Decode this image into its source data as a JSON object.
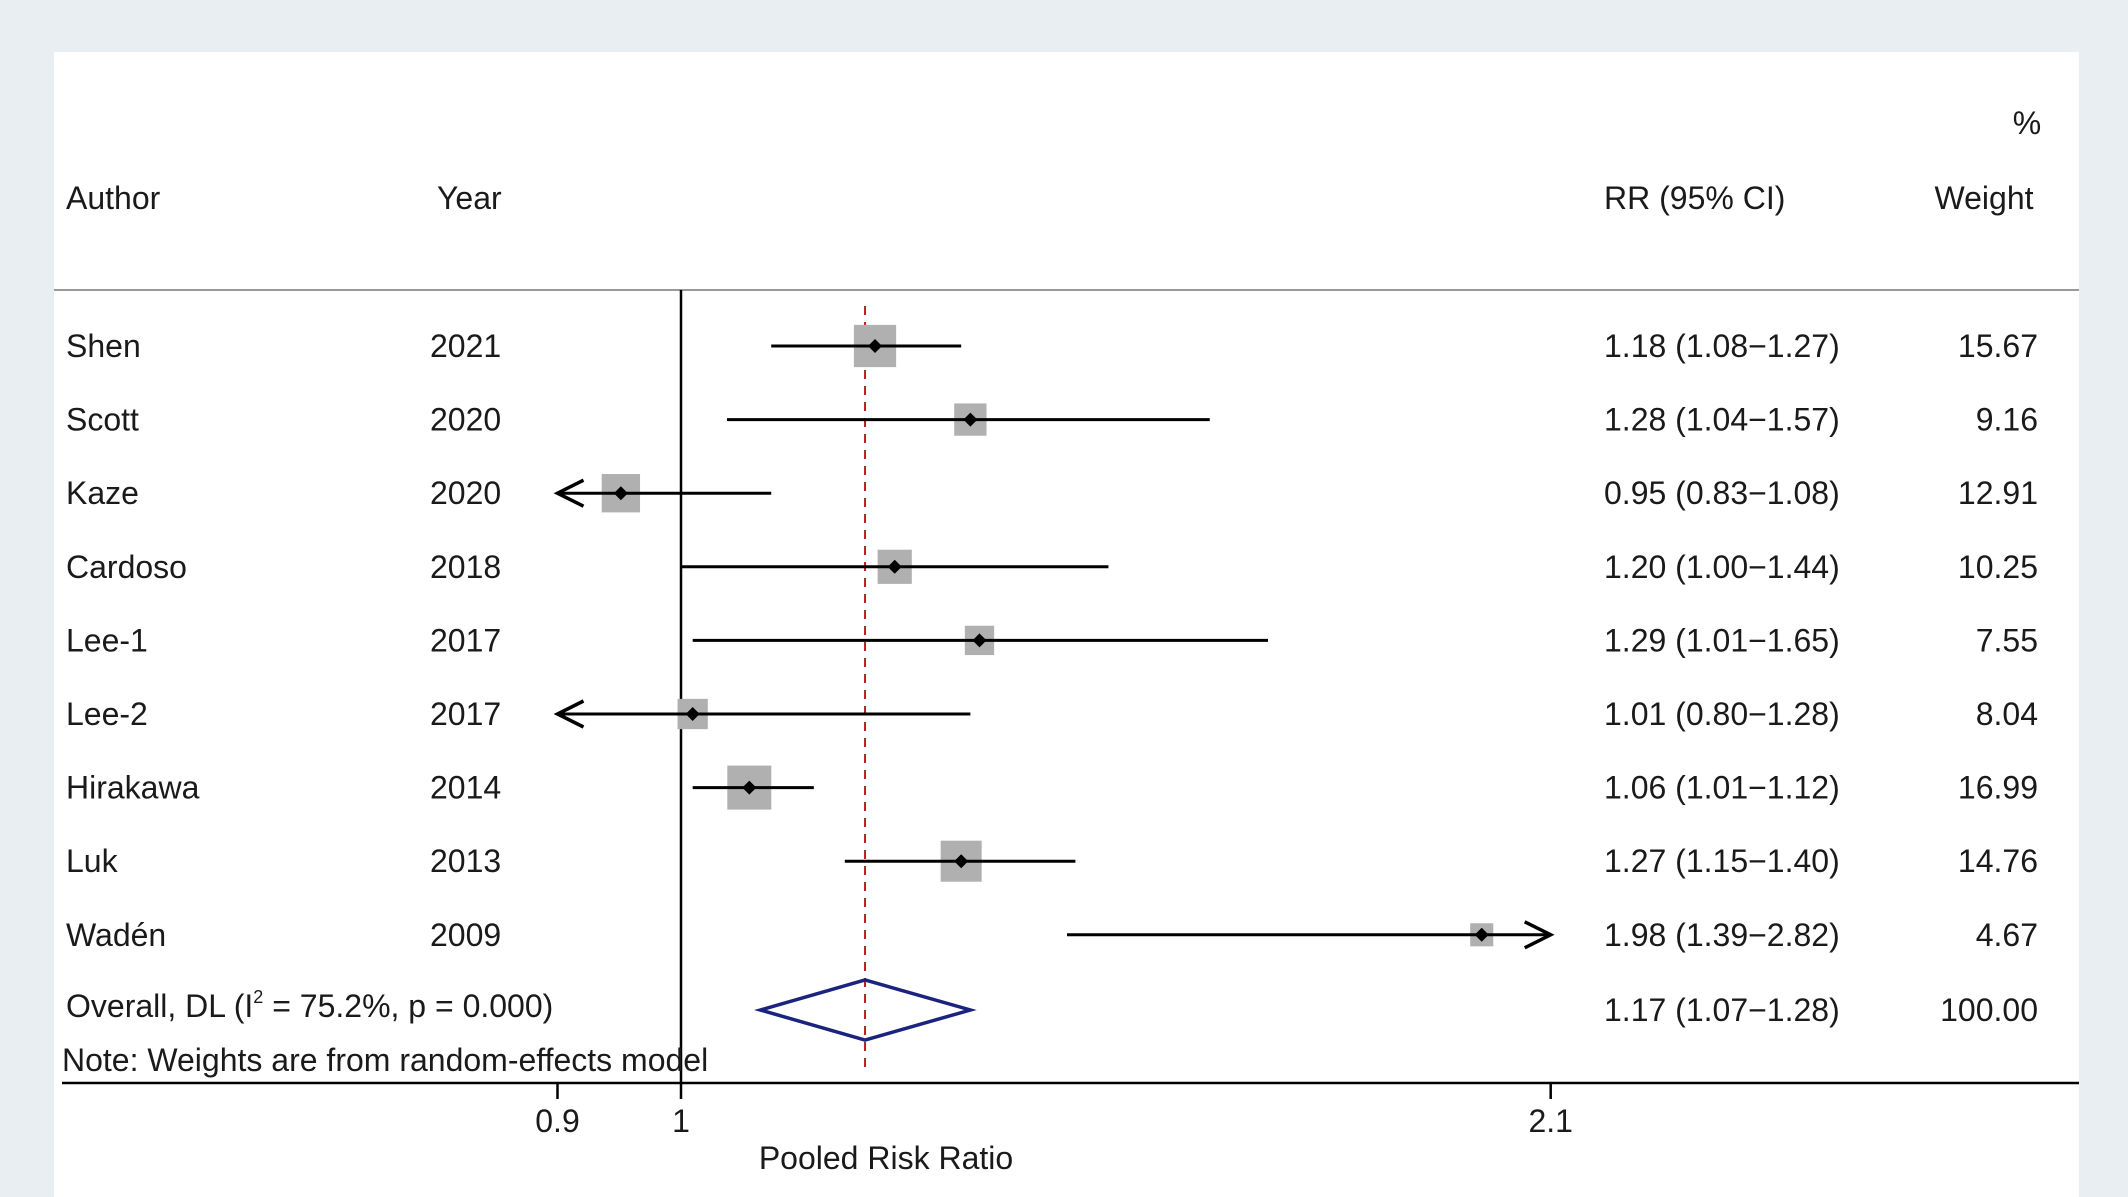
{
  "header": {
    "author": "Author",
    "year": "Year",
    "rr": "RR (95% CI)",
    "weight_pct": "%",
    "weight": "Weight"
  },
  "overall_label_prefix": "Overall, DL (I",
  "overall_label_sup": "2",
  "overall_label_suffix": " = 75.2%, p = 0.000)",
  "note": "Note: Weights are from random-effects model",
  "xaxis": {
    "label": "Pooled Risk Ratio",
    "ticks": [
      {
        "value": 0.9,
        "label": "0.9"
      },
      {
        "value": 1,
        "label": "1"
      },
      {
        "value": 2.1,
        "label": "2.1"
      }
    ]
  },
  "colors": {
    "box": "#b0b0b0",
    "point": "#000000",
    "ci_line": "#000000",
    "null_line": "#000000",
    "overall_line": "#b22222",
    "diamond": "#1a237e"
  },
  "chart_data": {
    "type": "forest",
    "scale": "log",
    "xlabel": "Pooled Risk Ratio",
    "null_value": 1,
    "overall_effect": 1.17,
    "x_clip": [
      0.9,
      2.1
    ],
    "studies": [
      {
        "author": "Shen",
        "year": "2021",
        "rr": 1.18,
        "lo": 1.08,
        "hi": 1.27,
        "ci_text": "1.18 (1.08−1.27)",
        "weight": "15.67"
      },
      {
        "author": "Scott",
        "year": "2020",
        "rr": 1.28,
        "lo": 1.04,
        "hi": 1.57,
        "ci_text": "1.28 (1.04−1.57)",
        "weight": "9.16"
      },
      {
        "author": "Kaze",
        "year": "2020",
        "rr": 0.95,
        "lo": 0.83,
        "hi": 1.08,
        "ci_text": "0.95 (0.83−1.08)",
        "weight": "12.91"
      },
      {
        "author": "Cardoso",
        "year": "2018",
        "rr": 1.2,
        "lo": 1.0,
        "hi": 1.44,
        "ci_text": "1.20 (1.00−1.44)",
        "weight": "10.25"
      },
      {
        "author": "Lee-1",
        "year": "2017",
        "rr": 1.29,
        "lo": 1.01,
        "hi": 1.65,
        "ci_text": "1.29 (1.01−1.65)",
        "weight": "7.55"
      },
      {
        "author": "Lee-2",
        "year": "2017",
        "rr": 1.01,
        "lo": 0.8,
        "hi": 1.28,
        "ci_text": "1.01 (0.80−1.28)",
        "weight": "8.04"
      },
      {
        "author": "Hirakawa",
        "year": "2014",
        "rr": 1.06,
        "lo": 1.01,
        "hi": 1.12,
        "ci_text": "1.06 (1.01−1.12)",
        "weight": "16.99"
      },
      {
        "author": "Luk",
        "year": "2013",
        "rr": 1.27,
        "lo": 1.15,
        "hi": 1.4,
        "ci_text": "1.27 (1.15−1.40)",
        "weight": "14.76"
      },
      {
        "author": "Wadén",
        "year": "2009",
        "rr": 1.98,
        "lo": 1.39,
        "hi": 2.82,
        "ci_text": "1.98 (1.39−2.82)",
        "weight": "4.67"
      }
    ],
    "overall": {
      "rr": 1.17,
      "lo": 1.07,
      "hi": 1.28,
      "ci_text": "1.17 (1.07−1.28)",
      "weight": "100.00"
    }
  }
}
